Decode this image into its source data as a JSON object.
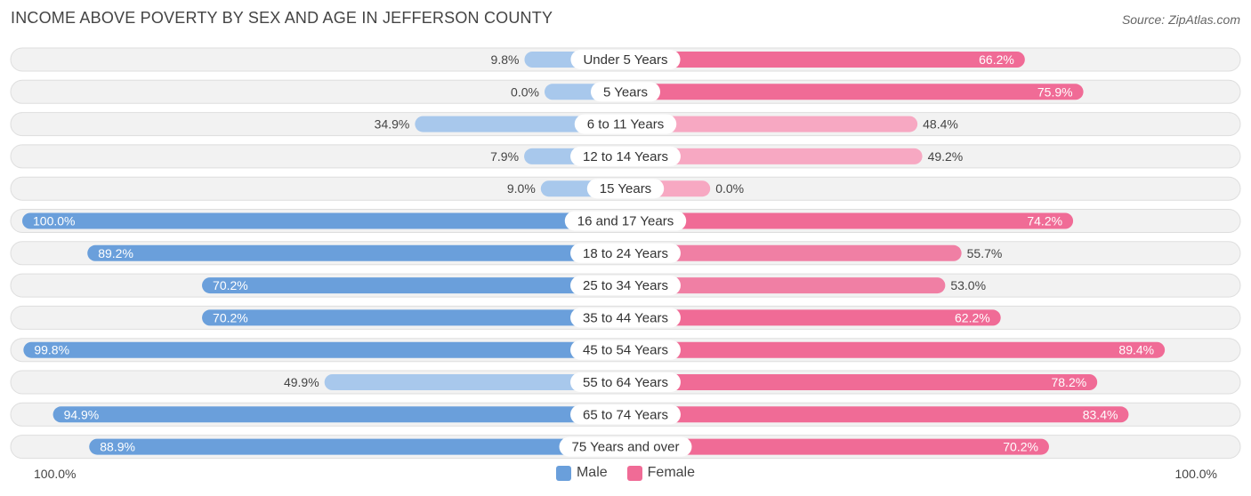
{
  "title": "INCOME ABOVE POVERTY BY SEX AND AGE IN JEFFERSON COUNTY",
  "source": "Source: ZipAtlas.com",
  "colors": {
    "male": "#6a9fdb",
    "male_light": "#a8c8ec",
    "female": "#f06b96",
    "female_light": "#f7a8c2",
    "row_bg": "#f2f2f2",
    "row_border": "#dedede"
  },
  "legend": {
    "male": "Male",
    "female": "Female"
  },
  "axis": {
    "left": "100.0%",
    "right": "100.0%"
  },
  "chart_data": {
    "type": "bar",
    "orientation": "diverging-horizontal",
    "title": "INCOME ABOVE POVERTY BY SEX AND AGE IN JEFFERSON COUNTY",
    "categories": [
      "Under 5 Years",
      "5 Years",
      "6 to 11 Years",
      "12 to 14 Years",
      "15 Years",
      "16 and 17 Years",
      "18 to 24 Years",
      "25 to 34 Years",
      "35 to 44 Years",
      "45 to 54 Years",
      "55 to 64 Years",
      "65 to 74 Years",
      "75 Years and over"
    ],
    "series": [
      {
        "name": "Male",
        "values": [
          9.8,
          0.0,
          34.9,
          7.9,
          9.0,
          100.0,
          89.2,
          70.2,
          70.2,
          99.8,
          49.9,
          94.9,
          88.9
        ],
        "labels": [
          "9.8%",
          "0.0%",
          "34.9%",
          "7.9%",
          "9.0%",
          "100.0%",
          "89.2%",
          "70.2%",
          "70.2%",
          "99.8%",
          "49.9%",
          "94.9%",
          "88.9%"
        ]
      },
      {
        "name": "Female",
        "values": [
          66.2,
          75.9,
          48.4,
          49.2,
          0.0,
          74.2,
          55.7,
          53.0,
          62.2,
          89.4,
          78.2,
          83.4,
          70.2
        ],
        "labels": [
          "66.2%",
          "75.9%",
          "48.4%",
          "49.2%",
          "0.0%",
          "74.2%",
          "55.7%",
          "53.0%",
          "62.2%",
          "89.4%",
          "78.2%",
          "83.4%",
          "70.2%"
        ]
      }
    ],
    "xlim": [
      0,
      100
    ],
    "legend_position": "bottom-center"
  }
}
